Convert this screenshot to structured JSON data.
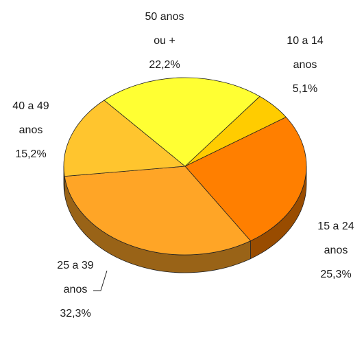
{
  "chart_data": {
    "type": "pie3d",
    "categories": [
      [
        "10 a 14",
        "anos"
      ],
      [
        "15 a 24",
        "anos"
      ],
      [
        "25 a 39",
        "anos"
      ],
      [
        "40 a 49",
        "anos"
      ],
      [
        "50 anos",
        "ou +"
      ]
    ],
    "values": [
      5.1,
      25.3,
      32.3,
      15.2,
      22.2
    ],
    "value_labels": [
      "5,1%",
      "25,3%",
      "32,3%",
      "15,2%",
      "22,2%"
    ],
    "colors": [
      "#ffcc00",
      "#ff7f00",
      "#ffa526",
      "#ffc52e",
      "#ffff33"
    ]
  }
}
